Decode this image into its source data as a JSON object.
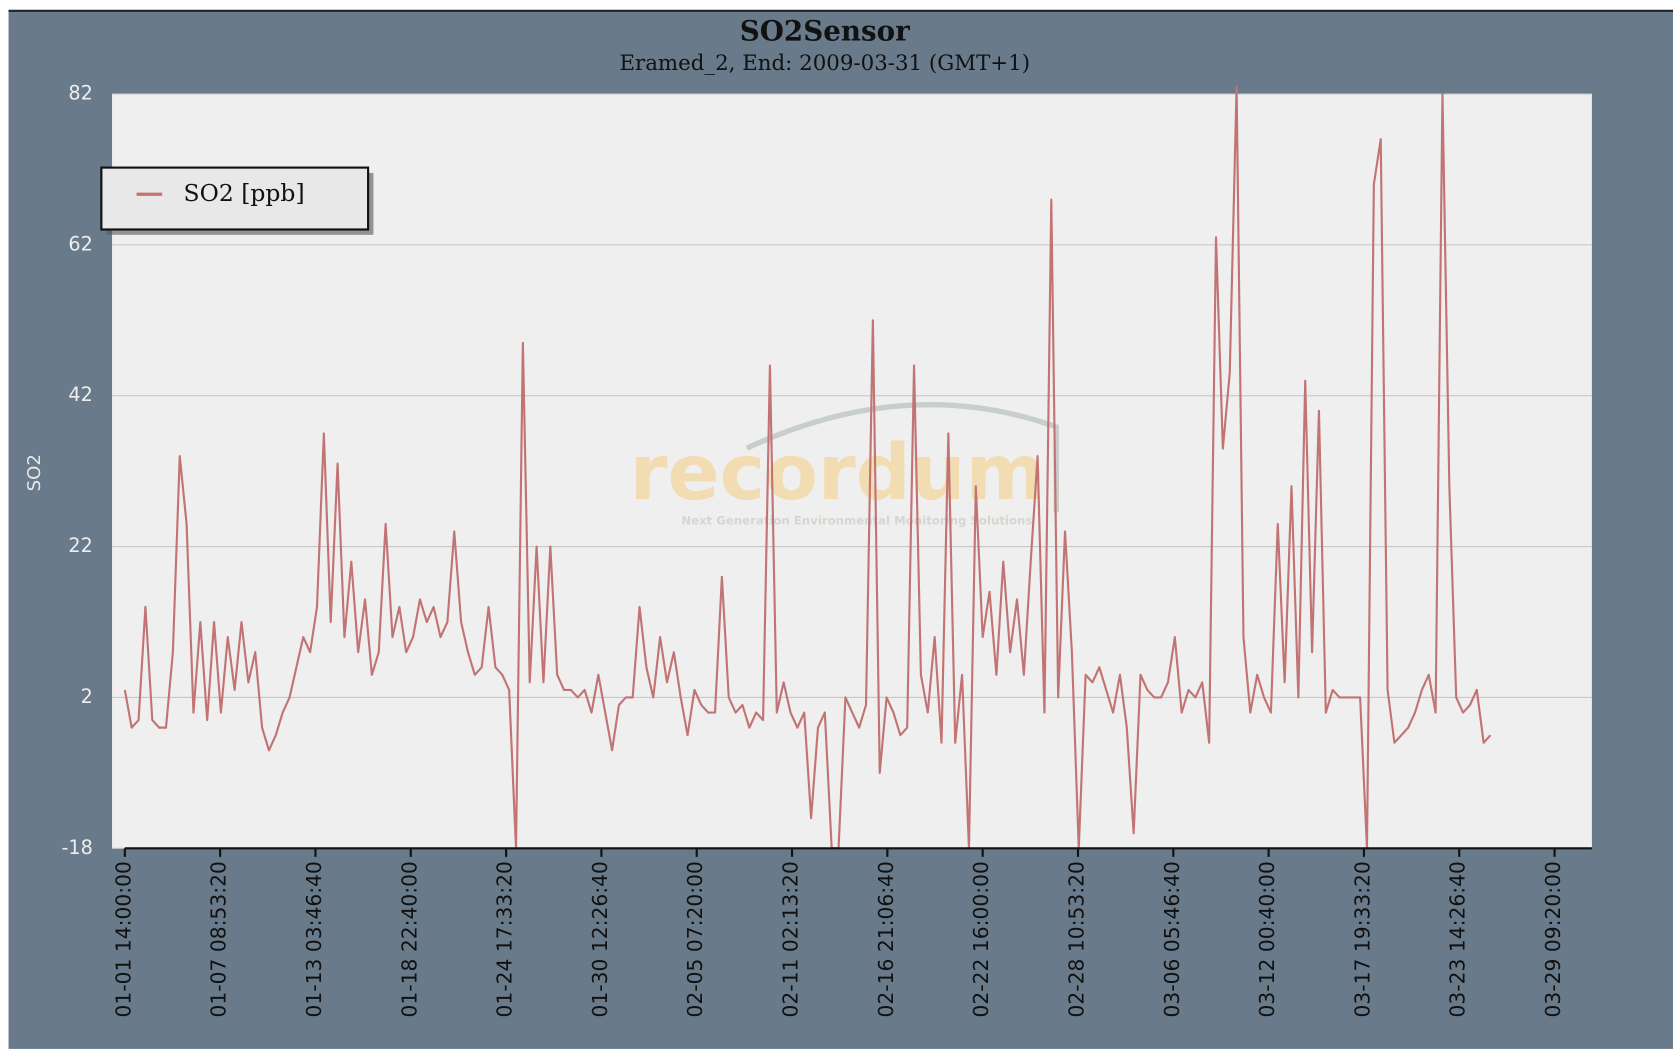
{
  "chart_data": {
    "type": "line",
    "title": "SO2Sensor",
    "subtitle": "Eramed_2, End: 2009-03-31 (GMT+1)",
    "y_label": "SO2",
    "watermark": "recordum",
    "watermark_tagline": "Next Generation Environmental Monitoring Solutions",
    "legend": "upper left",
    "grid": true,
    "ylim": [
      -18,
      82
    ],
    "yticks": [
      -18,
      2,
      22,
      42,
      62,
      82
    ],
    "xlim": [
      "01-01 14:00:00",
      "03-29 09:20:00"
    ],
    "xticks": [
      "01-01 14:00:00",
      "01-07 08:53:20",
      "01-13 03:46:40",
      "01-18 22:40:00",
      "01-24 17:33:20",
      "01-30 12:26:40",
      "02-05 07:20:00",
      "02-11 02:13:20",
      "02-16 21:06:40",
      "02-22 16:00:00",
      "02-28 10:53:20",
      "03-06 05:46:40",
      "03-12 00:40:00",
      "03-17 19:33:20",
      "03-23 14:26:40",
      "03-29 09:20:00"
    ],
    "x": [
      "01-01 14:00:00",
      "01-02 00:00:00",
      "01-02 10:00:00",
      "01-02 20:00:00",
      "01-03 06:00:00",
      "01-03 16:00:00",
      "01-04 02:00:00",
      "01-04 12:00:00",
      "01-04 22:00:00",
      "01-05 08:00:00",
      "01-05 18:00:00",
      "01-06 04:00:00",
      "01-06 14:00:00",
      "01-07 00:00:00",
      "01-07 10:00:00",
      "01-07 20:00:00",
      "01-08 06:00:00",
      "01-08 16:00:00",
      "01-09 02:00:00",
      "01-09 12:00:00",
      "01-09 22:00:00",
      "01-10 08:00:00",
      "01-10 18:00:00",
      "01-11 04:00:00",
      "01-11 14:00:00",
      "01-12 00:00:00",
      "01-12 10:00:00",
      "01-12 20:00:00",
      "01-13 06:00:00",
      "01-13 16:00:00",
      "01-14 02:00:00",
      "01-14 12:00:00",
      "01-14 22:00:00",
      "01-15 08:00:00",
      "01-15 18:00:00",
      "01-16 04:00:00",
      "01-16 14:00:00",
      "01-17 00:00:00",
      "01-17 10:00:00",
      "01-17 20:00:00",
      "01-18 06:00:00",
      "01-18 16:00:00",
      "01-19 02:00:00",
      "01-19 12:00:00",
      "01-19 22:00:00",
      "01-20 08:00:00",
      "01-20 18:00:00",
      "01-21 04:00:00",
      "01-21 14:00:00",
      "01-22 00:00:00",
      "01-22 10:00:00",
      "01-22 20:00:00",
      "01-23 06:00:00",
      "01-23 16:00:00",
      "01-24 02:00:00",
      "01-24 12:00:00",
      "01-24 22:00:00",
      "01-25 08:00:00",
      "01-25 18:00:00",
      "01-26 04:00:00",
      "01-26 14:00:00",
      "01-27 00:00:00",
      "01-27 10:00:00",
      "01-27 20:00:00",
      "01-28 06:00:00",
      "01-28 16:00:00",
      "01-29 02:00:00",
      "01-29 12:00:00",
      "01-29 22:00:00",
      "01-30 08:00:00",
      "01-30 18:00:00",
      "01-31 04:00:00",
      "01-31 14:00:00",
      "02-01 00:00:00",
      "02-01 10:00:00",
      "02-01 20:00:00",
      "02-02 06:00:00",
      "02-02 16:00:00",
      "02-03 02:00:00",
      "02-03 12:00:00",
      "02-03 22:00:00",
      "02-04 08:00:00",
      "02-04 18:00:00",
      "02-05 04:00:00",
      "02-05 14:00:00",
      "02-06 00:00:00",
      "02-06 10:00:00",
      "02-06 20:00:00",
      "02-07 06:00:00",
      "02-07 16:00:00",
      "02-08 02:00:00",
      "02-08 12:00:00",
      "02-08 22:00:00",
      "02-09 08:00:00",
      "02-09 18:00:00",
      "02-10 04:00:00",
      "02-10 14:00:00",
      "02-11 00:00:00",
      "02-11 10:00:00",
      "02-11 20:00:00",
      "02-12 06:00:00",
      "02-12 16:00:00",
      "02-13 02:00:00",
      "02-13 12:00:00",
      "02-13 22:00:00",
      "02-14 08:00:00",
      "02-14 18:00:00",
      "02-15 04:00:00",
      "02-15 14:00:00",
      "02-16 00:00:00",
      "02-16 10:00:00",
      "02-16 20:00:00",
      "02-17 06:00:00",
      "02-17 16:00:00",
      "02-18 02:00:00",
      "02-18 12:00:00",
      "02-18 22:00:00",
      "02-19 08:00:00",
      "02-19 18:00:00",
      "02-20 04:00:00",
      "02-20 14:00:00",
      "02-21 00:00:00",
      "02-21 10:00:00",
      "02-21 20:00:00",
      "02-22 06:00:00",
      "02-22 16:00:00",
      "02-23 02:00:00",
      "02-23 12:00:00",
      "02-23 22:00:00",
      "02-24 08:00:00",
      "02-24 18:00:00",
      "02-25 04:00:00",
      "02-25 14:00:00",
      "02-26 00:00:00",
      "02-26 10:00:00",
      "02-26 20:00:00",
      "02-27 06:00:00",
      "02-27 16:00:00",
      "02-28 02:00:00",
      "02-28 12:00:00",
      "02-28 22:00:00",
      "03-01 08:00:00",
      "03-01 18:00:00",
      "03-02 04:00:00",
      "03-02 14:00:00",
      "03-03 00:00:00",
      "03-03 10:00:00",
      "03-03 20:00:00",
      "03-04 06:00:00",
      "03-04 16:00:00",
      "03-05 02:00:00",
      "03-05 12:00:00",
      "03-05 22:00:00",
      "03-06 08:00:00",
      "03-06 18:00:00",
      "03-07 04:00:00",
      "03-07 14:00:00",
      "03-08 00:00:00",
      "03-08 10:00:00",
      "03-08 20:00:00",
      "03-09 06:00:00",
      "03-09 16:00:00",
      "03-10 02:00:00",
      "03-10 12:00:00",
      "03-10 22:00:00",
      "03-11 08:00:00",
      "03-11 18:00:00",
      "03-12 04:00:00",
      "03-12 14:00:00",
      "03-13 00:00:00",
      "03-13 10:00:00",
      "03-13 20:00:00",
      "03-14 06:00:00",
      "03-14 16:00:00",
      "03-15 02:00:00",
      "03-15 12:00:00",
      "03-15 22:00:00",
      "03-16 08:00:00",
      "03-16 18:00:00",
      "03-17 04:00:00",
      "03-17 14:00:00",
      "03-18 00:00:00",
      "03-18 10:00:00",
      "03-18 20:00:00",
      "03-19 06:00:00",
      "03-19 16:00:00",
      "03-20 02:00:00",
      "03-20 12:00:00",
      "03-20 22:00:00",
      "03-21 08:00:00",
      "03-21 18:00:00",
      "03-22 04:00:00",
      "03-22 14:00:00",
      "03-23 00:00:00",
      "03-23 10:00:00",
      "03-23 20:00:00",
      "03-24 06:00:00",
      "03-24 16:00:00",
      "03-25 02:00:00",
      "03-25 12:00:00"
    ],
    "series": [
      {
        "name": "SO2 [ppb]",
        "color": "#c27373",
        "values": [
          3,
          -2,
          -1,
          14,
          -1,
          -2,
          -2,
          8,
          34,
          25,
          0,
          12,
          -1,
          12,
          0,
          10,
          3,
          12,
          4,
          8,
          -2,
          -5,
          -3,
          0,
          2,
          6,
          10,
          8,
          14,
          37,
          12,
          33,
          10,
          20,
          8,
          15,
          5,
          8,
          25,
          10,
          14,
          8,
          10,
          15,
          12,
          14,
          10,
          12,
          24,
          12,
          8,
          5,
          6,
          14,
          6,
          5,
          3,
          -18,
          49,
          4,
          22,
          4,
          22,
          5,
          3,
          3,
          2,
          3,
          0,
          5,
          0,
          -5,
          1,
          2,
          2,
          14,
          6,
          2,
          10,
          4,
          8,
          2,
          -3,
          3,
          1,
          0,
          0,
          18,
          2,
          0,
          1,
          -2,
          0,
          -1,
          46,
          0,
          4,
          0,
          -2,
          0,
          -14,
          -2,
          0,
          -18,
          -18,
          2,
          0,
          -2,
          1,
          52,
          -8,
          2,
          0,
          -3,
          -2,
          46,
          5,
          0,
          10,
          -4,
          37,
          -4,
          5,
          -18,
          30,
          10,
          16,
          5,
          20,
          8,
          15,
          5,
          20,
          34,
          0,
          68,
          2,
          24,
          8,
          -18,
          5,
          4,
          6,
          3,
          0,
          5,
          -2,
          -16,
          5,
          3,
          2,
          2,
          4,
          10,
          0,
          3,
          2,
          4,
          -4,
          63,
          35,
          45,
          83,
          10,
          0,
          5,
          2,
          0,
          25,
          4,
          30,
          2,
          44,
          8,
          40,
          0,
          3,
          2,
          2,
          2,
          2,
          -18,
          70,
          76,
          3,
          -4,
          -3,
          -2,
          0,
          3,
          5,
          0,
          82,
          30,
          2,
          0,
          1,
          3,
          -4,
          -3
        ]
      }
    ]
  }
}
